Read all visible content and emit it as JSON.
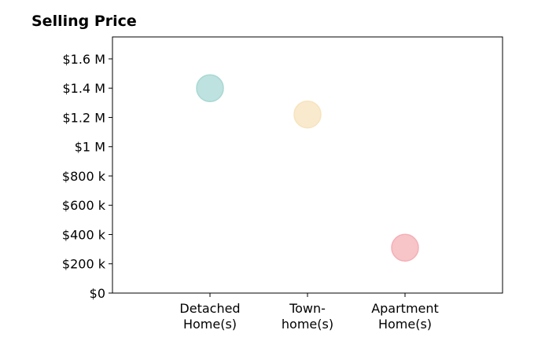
{
  "chart_data": {
    "type": "scatter",
    "title": "Selling Price",
    "xlabel": "",
    "ylabel": "",
    "categories": [
      [
        "Detached",
        "Home(s)"
      ],
      [
        "Town-",
        "home(s)"
      ],
      [
        "Apartment",
        "Home(s)"
      ]
    ],
    "values": [
      1400000,
      1220000,
      310000
    ],
    "colors": [
      "#a8d8d4",
      "#f7e3bd",
      "#f4b0b6"
    ],
    "ylim": [
      0,
      1750000
    ],
    "yticks": [
      {
        "value": 0,
        "label": "$0"
      },
      {
        "value": 200000,
        "label": "$200 k"
      },
      {
        "value": 400000,
        "label": "$400 k"
      },
      {
        "value": 600000,
        "label": "$600 k"
      },
      {
        "value": 800000,
        "label": "$800 k"
      },
      {
        "value": 1000000,
        "label": "$1 M"
      },
      {
        "value": 1200000,
        "label": "$1.2 M"
      },
      {
        "value": 1400000,
        "label": "$1.4 M"
      },
      {
        "value": 1600000,
        "label": "$1.6 M"
      }
    ],
    "grid": false,
    "legend": "none"
  }
}
